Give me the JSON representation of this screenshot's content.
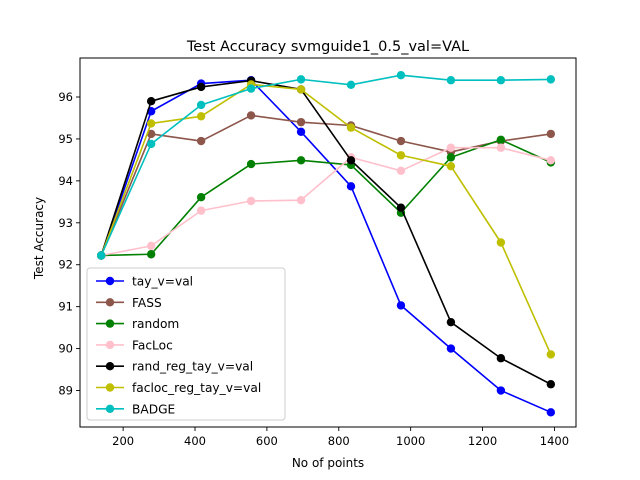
{
  "chart_data": {
    "type": "line",
    "title": "Test Accuracy svmguide1_0.5_val=VAL",
    "xlabel": "No of points",
    "ylabel": "Test Accuracy",
    "xlim": [
      80,
      1460
    ],
    "ylim": [
      88.13,
      96.93
    ],
    "xticks": [
      200,
      400,
      600,
      800,
      1000,
      1200,
      1400
    ],
    "yticks": [
      89,
      90,
      91,
      92,
      93,
      94,
      95,
      96
    ],
    "grid": false,
    "legend_position": "lower-left",
    "x": [
      139,
      278,
      417,
      556,
      695,
      834,
      973,
      1112,
      1251,
      1390
    ],
    "series": [
      {
        "name": "tay_v=val",
        "color": "#0000ff",
        "values": [
          92.22,
          95.66,
          96.32,
          96.4,
          95.17,
          93.87,
          91.03,
          90.0,
          89.0,
          88.48
        ]
      },
      {
        "name": "FASS",
        "color": "#8c564b",
        "values": [
          92.22,
          95.12,
          94.95,
          95.56,
          95.4,
          95.32,
          94.95,
          94.69,
          94.95,
          95.12
        ]
      },
      {
        "name": "random",
        "color": "#008000",
        "values": [
          92.22,
          92.25,
          93.61,
          94.4,
          94.49,
          94.38,
          93.24,
          94.56,
          94.98,
          94.44
        ]
      },
      {
        "name": "FacLoc",
        "color": "#ffc0cb",
        "values": [
          92.22,
          92.45,
          93.29,
          93.52,
          93.54,
          94.56,
          94.24,
          94.79,
          94.79,
          94.49
        ]
      },
      {
        "name": "rand_reg_tay_v=val",
        "color": "#000000",
        "values": [
          92.22,
          95.9,
          96.24,
          96.39,
          96.18,
          94.49,
          93.36,
          90.63,
          89.77,
          89.15
        ]
      },
      {
        "name": "facloc_reg_tay_v=val",
        "color": "#bfbf00",
        "values": [
          92.22,
          95.37,
          95.54,
          96.3,
          96.18,
          95.27,
          94.61,
          94.35,
          92.53,
          89.86
        ]
      },
      {
        "name": "BADGE",
        "color": "#00bfbf",
        "values": [
          92.22,
          94.88,
          95.81,
          96.2,
          96.42,
          96.29,
          96.52,
          96.4,
          96.4,
          96.42
        ]
      }
    ]
  }
}
